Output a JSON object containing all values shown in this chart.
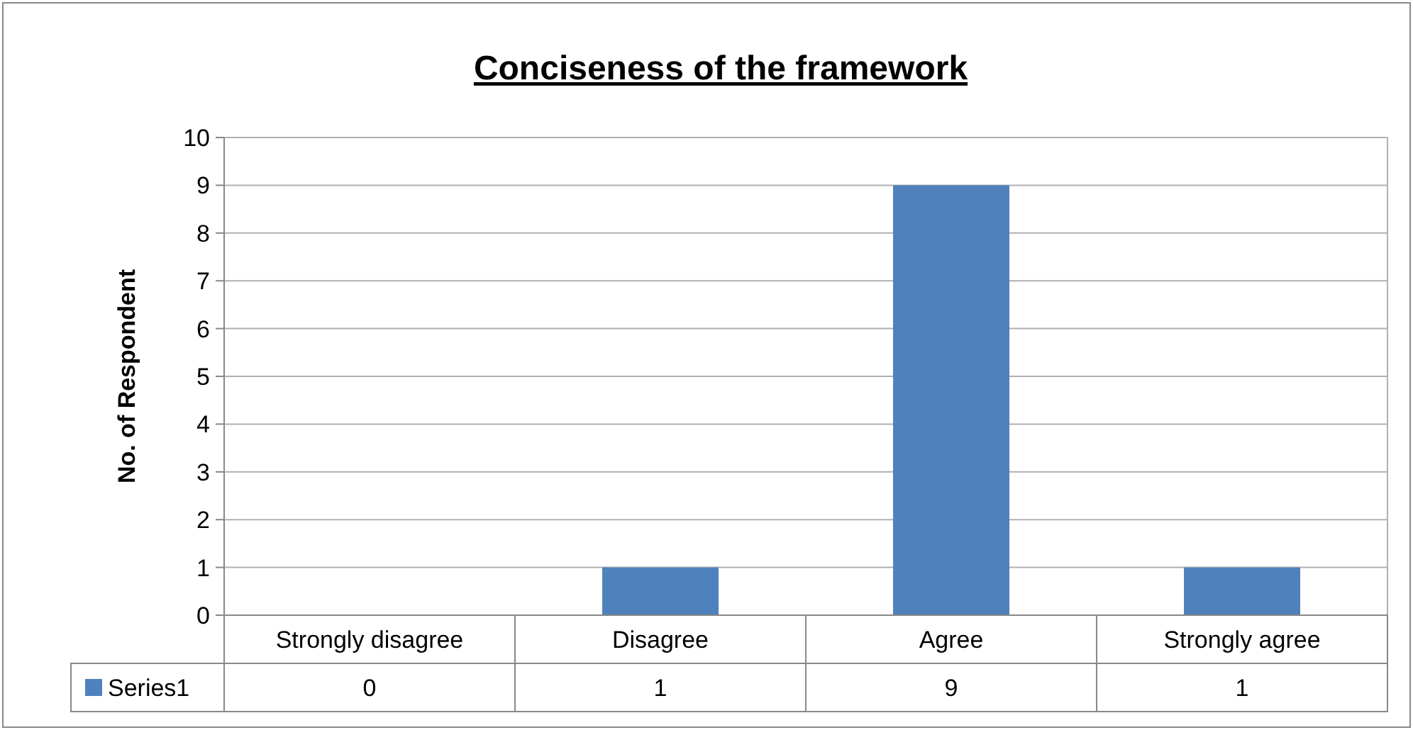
{
  "chart_data": {
    "type": "bar",
    "title": "Conciseness of the framework",
    "ylabel": "No. of Respondent",
    "categories": [
      "Strongly disagree",
      "Disagree",
      "Agree",
      "Strongly agree"
    ],
    "series": [
      {
        "name": "Series1",
        "color": "#4f81bd",
        "values": [
          0,
          1,
          9,
          1
        ]
      }
    ],
    "ylim": [
      0,
      10
    ],
    "yticks": [
      0,
      1,
      2,
      3,
      4,
      5,
      6,
      7,
      8,
      9,
      10
    ],
    "grid": "y",
    "legend": "bottom",
    "data_labels": true
  }
}
